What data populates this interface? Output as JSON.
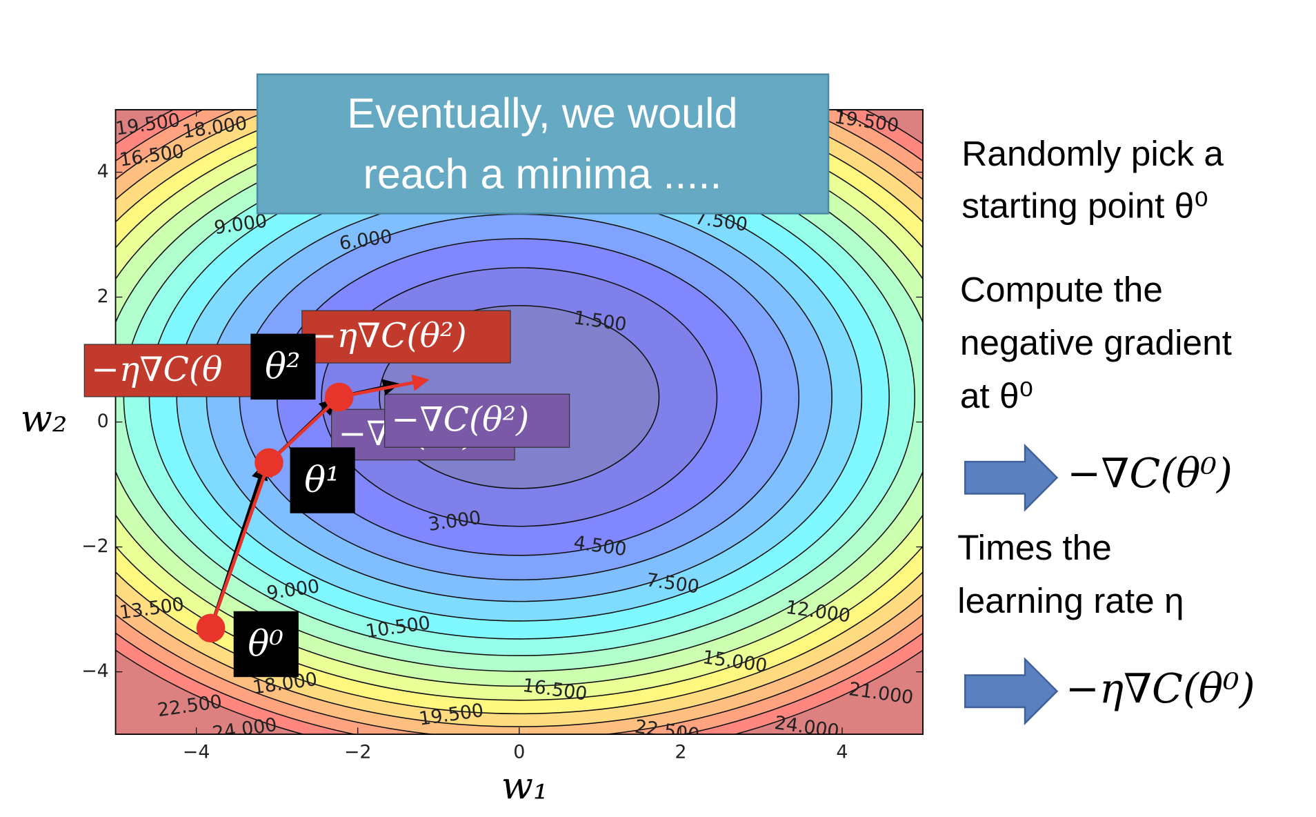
{
  "chart_data": {
    "type": "contour",
    "xlabel": "w₁",
    "ylabel": "w₂",
    "xlim": [
      -5,
      5
    ],
    "ylim": [
      -5,
      5
    ],
    "xticks": [
      {
        "value": -4,
        "label": "−4"
      },
      {
        "value": -2,
        "label": "−2"
      },
      0,
      2,
      4
    ],
    "yticks": [
      {
        "value": -4,
        "label": "−4"
      },
      {
        "value": -2,
        "label": "−2"
      },
      0,
      2,
      4
    ],
    "levels": [
      {
        "value": 1.5,
        "label": "1.500"
      },
      {
        "value": 3,
        "label": "3.000"
      },
      {
        "value": 4.5,
        "label": "4.500"
      },
      {
        "value": 6,
        "label": "6.000"
      },
      {
        "value": 7.5,
        "label": "7.500"
      },
      {
        "value": 9,
        "label": "9.000"
      },
      {
        "value": 10.5,
        "label": "10.500"
      },
      {
        "value": 12,
        "label": "12.000"
      },
      {
        "value": 13.5,
        "label": "13.500"
      },
      {
        "value": 15,
        "label": "15.000"
      },
      {
        "value": 16.5,
        "label": "16.500"
      },
      {
        "value": 18,
        "label": "18.000"
      },
      {
        "value": 19.5,
        "label": "19.500"
      },
      {
        "value": 21,
        "label": "21.000"
      },
      {
        "value": 22.5,
        "label": "22.500"
      },
      {
        "value": 24,
        "label": "24.000"
      }
    ],
    "path": {
      "x": [
        -3.82,
        -3.1,
        -2.23
      ],
      "y": [
        -3.3,
        -0.65,
        0.4
      ],
      "labels": [
        "θ⁰",
        "θ¹",
        "θ²"
      ],
      "color": "#e8352b"
    },
    "annotations": [
      "−η∇C(θ",
      "−η∇C(θ²)",
      "−∇C(θ¹)",
      "−∇C(θ²)"
    ]
  },
  "callout": {
    "lines": [
      "Eventually, we would",
      "reach a minima ....."
    ]
  },
  "steps": {
    "lines": [
      "Randomly pick a",
      "starting point θ⁰",
      "Compute the",
      "negative gradient",
      "at θ⁰",
      "Times the",
      "learning rate η"
    ],
    "results": [
      "−∇C(θ⁰)",
      "−η∇C(θ⁰)"
    ]
  }
}
